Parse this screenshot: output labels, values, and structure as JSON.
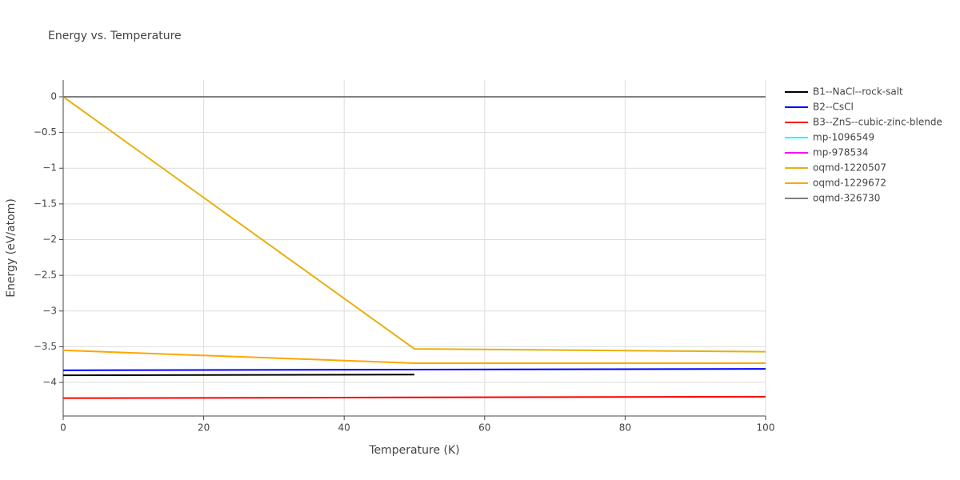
{
  "chart_data": {
    "type": "line",
    "title": "Energy vs. Temperature",
    "x_label": "Temperature (K)",
    "y_label": "Energy (eV/atom)",
    "x": [
      0,
      50,
      100
    ],
    "series": [
      {
        "name": "B1--NaCl--rock-salt",
        "color": "#000000",
        "values": [
          -3.9,
          -3.89,
          null
        ]
      },
      {
        "name": "B2--CsCl",
        "color": "#0000ff",
        "values": [
          -3.83,
          -3.82,
          -3.81
        ]
      },
      {
        "name": "B3--ZnS--cubic-zinc-blende",
        "color": "#ff0000",
        "values": [
          -4.22,
          -4.21,
          -4.2
        ]
      },
      {
        "name": "mp-1096549",
        "color": "#00ffff",
        "values": [
          0,
          0,
          0
        ]
      },
      {
        "name": "mp-978534",
        "color": "#ff00ff",
        "values": [
          0,
          0,
          0
        ]
      },
      {
        "name": "oqmd-1220507",
        "color": "#e6b00f",
        "values": [
          0,
          -3.53,
          -3.57
        ]
      },
      {
        "name": "oqmd-1229672",
        "color": "#ffa500",
        "values": [
          -3.55,
          -3.73,
          -3.73
        ]
      },
      {
        "name": "oqmd-326730",
        "color": "#808080",
        "values": [
          0,
          0,
          0
        ]
      }
    ],
    "xlim": [
      0,
      100
    ],
    "xticks": [
      0,
      20,
      40,
      60,
      80,
      100
    ],
    "ylim": [
      -4.47,
      0.235
    ],
    "yticks": [
      0,
      {
        "value": -0.5,
        "label": "−0.5"
      },
      {
        "value": -1,
        "label": "−1"
      },
      {
        "value": -1.5,
        "label": "−1.5"
      },
      {
        "value": -2,
        "label": "−2"
      },
      {
        "value": -2.5,
        "label": "−2.5"
      },
      {
        "value": -3,
        "label": "−3"
      },
      {
        "value": -3.5,
        "label": "−3.5"
      },
      {
        "value": -4,
        "label": "−4"
      }
    ],
    "grid": true
  }
}
